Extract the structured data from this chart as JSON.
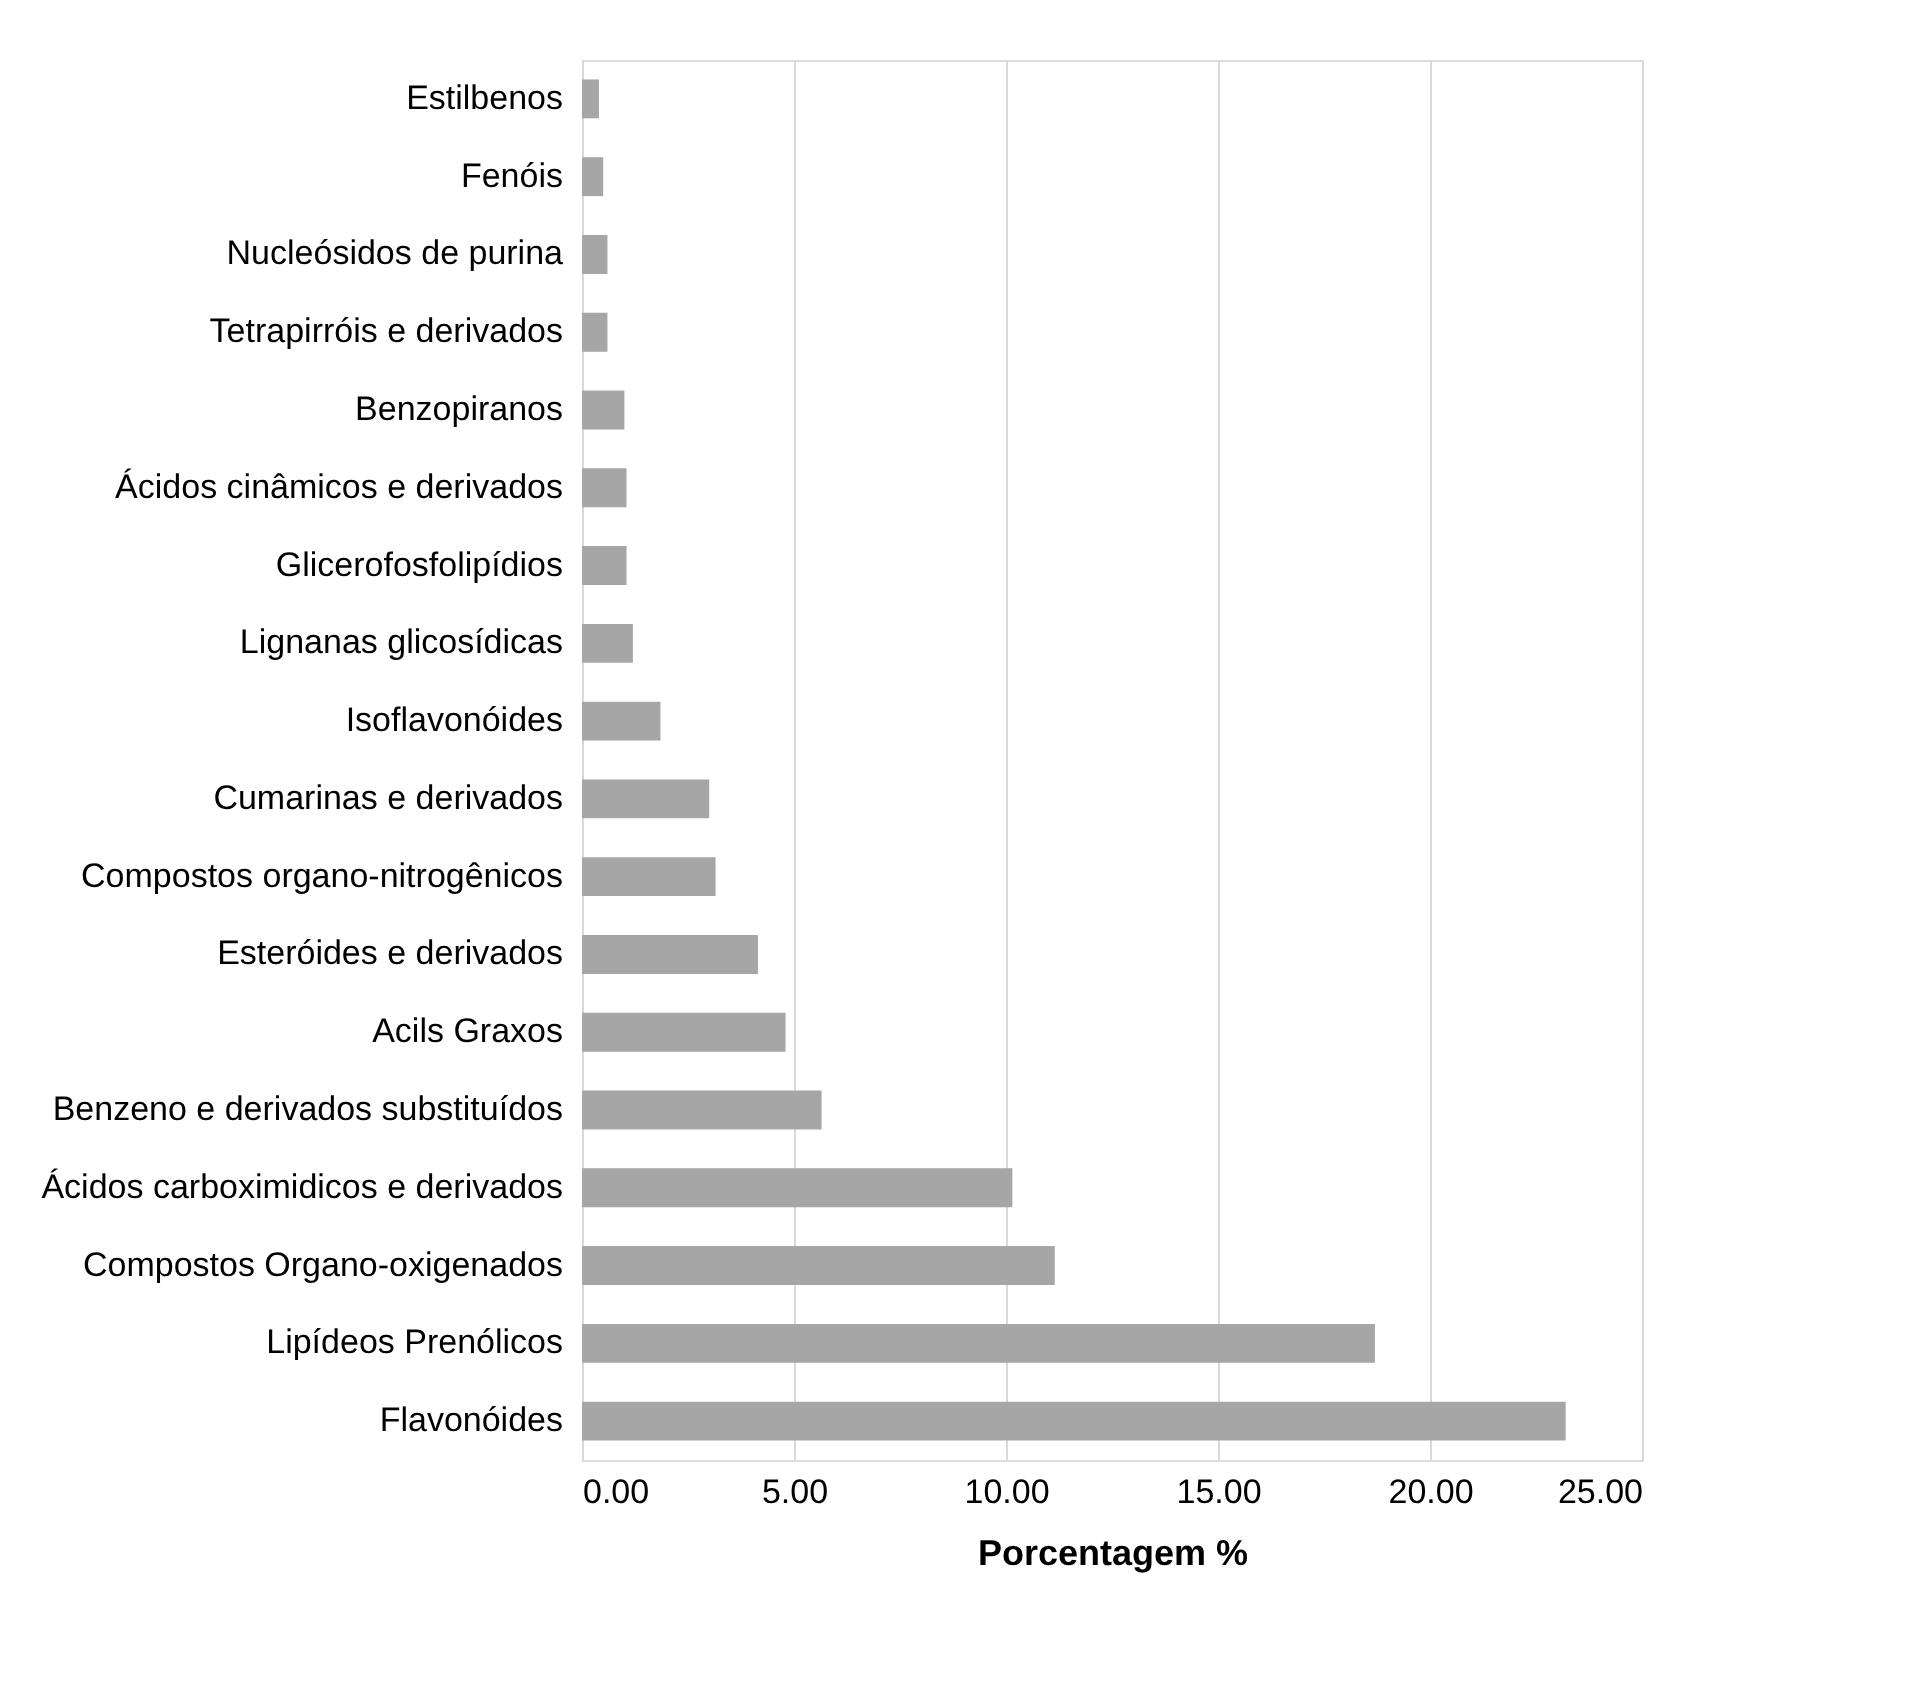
{
  "chart_data": {
    "type": "bar",
    "orientation": "horizontal",
    "xlabel": "Porcentagem %",
    "categories": [
      "Estilbenos",
      "Fenóis",
      "Nucleósidos de purina",
      "Tetrapirróis e derivados",
      "Benzopiranos",
      "Ácidos cinâmicos e derivados",
      "Glicerofosfolipídios",
      "Lignanas glicosídicas",
      "Isoflavonóides",
      "Cumarinas e derivados",
      "Compostos organo-nitrogênicos",
      "Esteróides e derivados",
      "Acils Graxos",
      "Benzeno e derivados substituídos",
      "Ácidos carboximidicos e derivados",
      "Compostos Organo-oxigenados",
      "Lipídeos Prenólicos",
      "Flavonóides"
    ],
    "values": [
      0.4,
      0.5,
      0.6,
      0.6,
      1.0,
      1.05,
      1.05,
      1.2,
      1.85,
      3.0,
      3.15,
      4.15,
      4.8,
      5.65,
      10.15,
      11.15,
      18.7,
      23.2
    ],
    "color": "#a6a6a6",
    "xlim": [
      0,
      25
    ],
    "xticks": [
      {
        "value": 0,
        "label": "0.00"
      },
      {
        "value": 5,
        "label": "5.00"
      },
      {
        "value": 10,
        "label": "10.00"
      },
      {
        "value": 15,
        "label": "15.00"
      },
      {
        "value": 20,
        "label": "20.00"
      },
      {
        "value": 25,
        "label": "25.00"
      }
    ],
    "grid": "x"
  }
}
